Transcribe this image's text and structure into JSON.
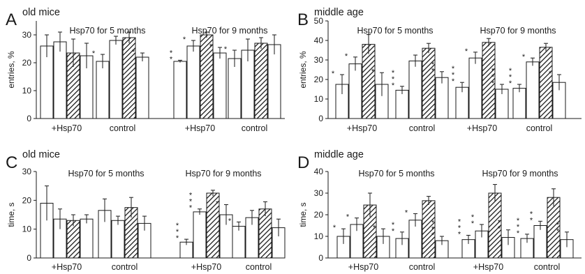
{
  "colors": {
    "bar_fill": "#ffffff",
    "bar_stroke": "#1a1a1a",
    "hatch_line": "#1a1a1a",
    "text": "#1a1a1a"
  },
  "chart_data": [
    {
      "panel": "A",
      "title": "old mice",
      "type": "bar",
      "ylabel": "entries, %",
      "ylim": [
        0,
        35
      ],
      "yticks": [
        0,
        10,
        20,
        30
      ],
      "group_titles": [
        "Hsp70 for 5 months",
        "Hsp70 for 9 months"
      ],
      "categories": [
        "+Hsp70",
        "control",
        "+Hsp70",
        "control"
      ],
      "bar_pattern": [
        "open",
        "open",
        "hatched",
        "open"
      ],
      "values": [
        [
          26,
          27.5,
          23.5,
          22.5
        ],
        [
          20.5,
          28,
          29,
          22
        ],
        [
          20.5,
          26,
          30,
          23.5
        ],
        [
          21.5,
          24.5,
          27,
          26.5
        ]
      ],
      "errors": [
        [
          4,
          3.5,
          5,
          4.5
        ],
        [
          2.5,
          1.5,
          2,
          1.5
        ],
        [
          0.4,
          2,
          1,
          2
        ],
        [
          3,
          4,
          2,
          3.5
        ]
      ],
      "significance": [
        [
          "",
          "",
          "",
          ""
        ],
        [
          "*",
          "",
          "",
          "*"
        ],
        [
          "* *",
          "*",
          "",
          "*"
        ],
        [
          "*",
          "",
          "",
          ""
        ]
      ]
    },
    {
      "panel": "B",
      "title": "middle age",
      "type": "bar",
      "ylabel": "entries, %",
      "ylim": [
        0,
        50
      ],
      "yticks": [
        0,
        10,
        20,
        30,
        40,
        50
      ],
      "group_titles": [
        "Hsp70 for 5 months",
        "Hsp70 for 9 months"
      ],
      "categories": [
        "+Hsp70",
        "control",
        "+Hsp70",
        "control"
      ],
      "bar_pattern": [
        "open",
        "open",
        "hatched",
        "open"
      ],
      "values": [
        [
          17.5,
          28,
          38,
          17.5
        ],
        [
          14.5,
          29.5,
          36,
          21
        ],
        [
          16,
          31,
          39,
          15
        ],
        [
          15.5,
          29,
          36.5,
          18.5
        ]
      ],
      "errors": [
        [
          5,
          3.5,
          5,
          6
        ],
        [
          2,
          3,
          2.5,
          3
        ],
        [
          2.5,
          3,
          2,
          2.5
        ],
        [
          2,
          2,
          2,
          4
        ]
      ],
      "significance": [
        [
          "*",
          "*",
          "",
          "*"
        ],
        [
          "* * *",
          "",
          "",
          "* *"
        ],
        [
          "* * *",
          "*",
          "",
          "* * *"
        ],
        [
          "* * *",
          "*",
          "",
          "*"
        ]
      ]
    },
    {
      "panel": "C",
      "title": "old mice",
      "type": "bar",
      "ylabel": "time, s",
      "ylim": [
        0,
        30
      ],
      "yticks": [
        0,
        10,
        20,
        30
      ],
      "group_titles": [
        "Hsp70 for 5 months",
        "Hsp70 for 9 months"
      ],
      "categories": [
        "+Hsp70",
        "control",
        "+Hsp70",
        "control"
      ],
      "bar_pattern": [
        "open",
        "open",
        "hatched",
        "open"
      ],
      "values": [
        [
          19,
          13.5,
          13,
          13.5
        ],
        [
          16.5,
          13,
          17.5,
          12
        ],
        [
          5.5,
          16,
          22.5,
          15
        ],
        [
          11,
          14,
          17,
          10.5
        ]
      ],
      "errors": [
        [
          6,
          3.5,
          2,
          1.5
        ],
        [
          4,
          1.5,
          3.5,
          2.5
        ],
        [
          1,
          1,
          1,
          3.5
        ],
        [
          1.5,
          2.5,
          2.5,
          3
        ]
      ],
      "significance": [
        [
          "",
          "",
          "",
          ""
        ],
        [
          "",
          "",
          "",
          ""
        ],
        [
          "* * *",
          "* * *",
          "",
          "*"
        ],
        [
          "*",
          "",
          "",
          ""
        ]
      ]
    },
    {
      "panel": "D",
      "title": "middle age",
      "type": "bar",
      "ylabel": "time, s",
      "ylim": [
        0,
        40
      ],
      "yticks": [
        0,
        10,
        20,
        30,
        40
      ],
      "group_titles": [
        "Hsp70 for 5 months",
        "Hsp70 for 9 months"
      ],
      "categories": [
        "+Hsp70",
        "control",
        "+Hsp70",
        "control"
      ],
      "bar_pattern": [
        "open",
        "open",
        "hatched",
        "open"
      ],
      "values": [
        [
          10,
          15.5,
          24.5,
          10
        ],
        [
          9,
          17.5,
          26.5,
          8
        ],
        [
          8.5,
          12.5,
          30,
          9.5
        ],
        [
          9,
          15,
          28,
          8.5
        ]
      ],
      "errors": [
        [
          3.5,
          3,
          5.5,
          3.5
        ],
        [
          3,
          3,
          2,
          2
        ],
        [
          2,
          3,
          4,
          3.5
        ],
        [
          2,
          2,
          4,
          3.5
        ]
      ],
      "significance": [
        [
          "*",
          "*",
          "",
          "*"
        ],
        [
          "* *",
          "*",
          "",
          "* * *"
        ],
        [
          "* * *",
          "* *",
          "",
          "* *"
        ],
        [
          "* * *",
          "* *",
          "",
          "* *"
        ]
      ]
    }
  ]
}
